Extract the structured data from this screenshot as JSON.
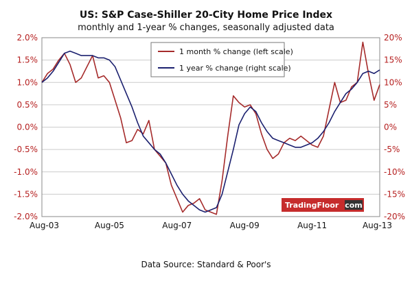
{
  "chart_data": {
    "type": "line",
    "title": "US: S&P Case-Shiller 20-City Home Price Index",
    "subtitle": "monthly and 1-year % changes, seasonally adjusted data",
    "source": "Data Source: Standard & Poor's",
    "logo": {
      "main": "TradingFloor",
      "suffix": "com"
    },
    "x_ticks": [
      "Aug-03",
      "Aug-05",
      "Aug-07",
      "Aug-09",
      "Aug-11",
      "Aug-13"
    ],
    "x_range": [
      2003.583,
      2013.583
    ],
    "left_axis": {
      "ylim": [
        -2.0,
        2.0
      ],
      "ticks": [
        "2.0%",
        "1.5%",
        "1.0%",
        "0.5%",
        "0.0%",
        "-0.5%",
        "-1.0%",
        "-1.5%",
        "-2.0%"
      ]
    },
    "right_axis": {
      "ylim": [
        -20,
        20
      ],
      "ticks": [
        "20%",
        "15%",
        "10%",
        "5%",
        "0%",
        "-5%",
        "-10%",
        "-15%",
        "-20%"
      ]
    },
    "grid": true,
    "legend_position": "top-center",
    "colors": {
      "series1": "#a52a2a",
      "series2": "#1a1f6e",
      "axis_labels": "#b51f1f",
      "logo_bg": "#c62c2c",
      "logo_com_bg": "#333333"
    },
    "series": [
      {
        "name": "1 month % change (left scale)",
        "axis": "left",
        "x": [
          2003.583,
          2003.75,
          2003.917,
          2004.083,
          2004.25,
          2004.417,
          2004.583,
          2004.75,
          2004.917,
          2005.083,
          2005.25,
          2005.417,
          2005.583,
          2005.75,
          2005.917,
          2006.083,
          2006.25,
          2006.417,
          2006.583,
          2006.75,
          2006.917,
          2007.083,
          2007.25,
          2007.417,
          2007.583,
          2007.75,
          2007.917,
          2008.083,
          2008.25,
          2008.417,
          2008.583,
          2008.75,
          2008.917,
          2009.083,
          2009.25,
          2009.417,
          2009.583,
          2009.75,
          2009.917,
          2010.083,
          2010.25,
          2010.417,
          2010.583,
          2010.75,
          2010.917,
          2011.083,
          2011.25,
          2011.417,
          2011.583,
          2011.75,
          2011.917,
          2012.083,
          2012.25,
          2012.417,
          2012.583,
          2012.75,
          2012.917,
          2013.083,
          2013.25,
          2013.417,
          2013.583
        ],
        "values": [
          1.0,
          1.2,
          1.3,
          1.5,
          1.65,
          1.4,
          1.0,
          1.1,
          1.35,
          1.6,
          1.1,
          1.15,
          1.0,
          0.6,
          0.2,
          -0.35,
          -0.3,
          -0.05,
          -0.15,
          0.15,
          -0.5,
          -0.65,
          -0.8,
          -1.3,
          -1.6,
          -1.9,
          -1.75,
          -1.7,
          -1.6,
          -1.85,
          -1.9,
          -1.95,
          -1.2,
          -0.2,
          0.7,
          0.55,
          0.45,
          0.5,
          0.3,
          -0.15,
          -0.5,
          -0.7,
          -0.6,
          -0.35,
          -0.25,
          -0.3,
          -0.2,
          -0.3,
          -0.4,
          -0.45,
          -0.2,
          0.4,
          1.0,
          0.55,
          0.6,
          0.9,
          1.0,
          1.9,
          1.2,
          0.6,
          0.95
        ]
      },
      {
        "name": "1 year % change (right scale)",
        "axis": "right",
        "x": [
          2003.583,
          2003.75,
          2003.917,
          2004.083,
          2004.25,
          2004.417,
          2004.583,
          2004.75,
          2004.917,
          2005.083,
          2005.25,
          2005.417,
          2005.583,
          2005.75,
          2005.917,
          2006.083,
          2006.25,
          2006.417,
          2006.583,
          2006.75,
          2006.917,
          2007.083,
          2007.25,
          2007.417,
          2007.583,
          2007.75,
          2007.917,
          2008.083,
          2008.25,
          2008.417,
          2008.583,
          2008.75,
          2008.917,
          2009.083,
          2009.25,
          2009.417,
          2009.583,
          2009.75,
          2009.917,
          2010.083,
          2010.25,
          2010.417,
          2010.583,
          2010.75,
          2010.917,
          2011.083,
          2011.25,
          2011.417,
          2011.583,
          2011.75,
          2011.917,
          2012.083,
          2012.25,
          2012.417,
          2012.583,
          2012.75,
          2012.917,
          2013.083,
          2013.25,
          2013.417,
          2013.583
        ],
        "values": [
          10.0,
          11.0,
          12.5,
          14.5,
          16.5,
          17.0,
          16.5,
          16.0,
          16.0,
          16.0,
          15.5,
          15.5,
          15.0,
          13.5,
          10.5,
          7.5,
          4.5,
          1.0,
          -2.0,
          -3.5,
          -5.0,
          -6.0,
          -8.0,
          -10.5,
          -13.0,
          -15.0,
          -16.5,
          -17.5,
          -18.5,
          -19.0,
          -18.5,
          -18.0,
          -15.0,
          -10.0,
          -5.0,
          0.5,
          3.0,
          4.5,
          3.5,
          1.0,
          -1.0,
          -2.5,
          -3.0,
          -3.5,
          -4.0,
          -4.5,
          -4.5,
          -4.0,
          -3.5,
          -2.5,
          -1.0,
          1.0,
          3.5,
          5.5,
          7.5,
          8.5,
          10.0,
          12.0,
          12.5,
          12.0,
          12.8
        ]
      }
    ]
  }
}
